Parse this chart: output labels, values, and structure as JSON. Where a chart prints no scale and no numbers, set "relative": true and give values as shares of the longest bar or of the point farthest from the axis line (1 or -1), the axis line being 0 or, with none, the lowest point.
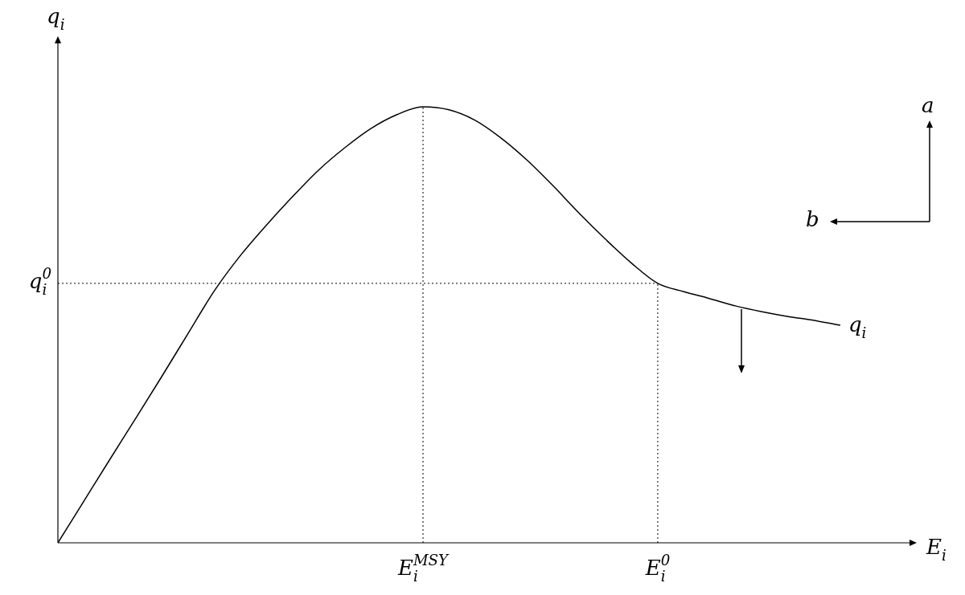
{
  "chart_data": {
    "type": "line",
    "relative": true,
    "xlabel": "E$_{i}$",
    "ylabel": "q$_{i}$",
    "marker": "none",
    "categories": [
      null,
      null,
      null,
      null,
      null,
      null,
      null,
      null,
      null,
      null,
      null,
      null,
      null,
      null,
      "E$_{i}$$^{MSY}$",
      null,
      null,
      null,
      null,
      null,
      null,
      null,
      null,
      "E$_{i}$$^{0}$",
      null,
      null,
      null,
      null,
      null,
      null,
      null
    ],
    "series": [
      {
        "name": "q$_{i}$",
        "color": "#000000",
        "values": [
          0,
          0.096,
          0.192,
          0.287,
          0.383,
          0.481,
          0.578,
          0.659,
          0.729,
          0.794,
          0.855,
          0.906,
          0.95,
          0.982,
          1.0,
          0.993,
          0.969,
          0.928,
          0.877,
          0.818,
          0.755,
          0.696,
          0.641,
          0.595,
          0.576,
          0.56,
          0.543,
          0.53,
          0.519,
          0.51,
          0.499
        ]
      }
    ],
    "ref_lines": [
      {
        "axis": "y",
        "value": 0.595,
        "label": "q$_{i}$$^{0}$",
        "line_style": "dotted"
      }
    ],
    "annotations": [
      "a",
      "b"
    ]
  }
}
